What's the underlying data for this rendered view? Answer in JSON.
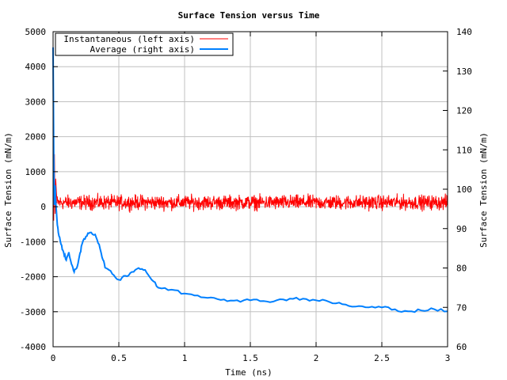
{
  "chart_data": {
    "type": "line",
    "title": "Surface Tension versus Time",
    "xlabel": "Time (ns)",
    "ylabel_left": "Surface Tension (mN/m)",
    "ylabel_right": "Surface Tension (mN/m)",
    "xlim": [
      0,
      3
    ],
    "ylim_left": [
      -4000,
      5000
    ],
    "ylim_right": [
      60,
      140
    ],
    "x_ticks": [
      0,
      0.5,
      1,
      1.5,
      2,
      2.5,
      3
    ],
    "x_tick_labels": [
      "0",
      "0.5",
      "1",
      "1.5",
      "2",
      "2.5",
      "3"
    ],
    "y_left_ticks": [
      -4000,
      -3000,
      -2000,
      -1000,
      0,
      1000,
      2000,
      3000,
      4000,
      5000
    ],
    "y_right_ticks": [
      60,
      70,
      80,
      90,
      100,
      110,
      120,
      130,
      140
    ],
    "grid": true,
    "legend_position": "top-left",
    "series": [
      {
        "name": "Instantaneous (left axis)",
        "axis": "left",
        "color": "#ff0000",
        "mean": 120,
        "amplitude": 220,
        "initial_spike": [
          [
            0.0,
            4600
          ],
          [
            0.005,
            -400
          ],
          [
            0.01,
            1500
          ],
          [
            0.015,
            -200
          ],
          [
            0.02,
            800
          ],
          [
            0.03,
            100
          ]
        ],
        "x_range": [
          0.03,
          3
        ]
      },
      {
        "name": "Average (right axis)",
        "axis": "right",
        "color": "#0080ff",
        "points": [
          [
            0.0,
            136
          ],
          [
            0.005,
            110
          ],
          [
            0.01,
            96
          ],
          [
            0.015,
            101
          ],
          [
            0.02,
            97
          ],
          [
            0.03,
            92
          ],
          [
            0.04,
            89
          ],
          [
            0.06,
            86
          ],
          [
            0.08,
            84
          ],
          [
            0.1,
            82
          ],
          [
            0.12,
            84
          ],
          [
            0.14,
            81
          ],
          [
            0.16,
            79
          ],
          [
            0.18,
            80
          ],
          [
            0.2,
            83
          ],
          [
            0.22,
            86
          ],
          [
            0.25,
            88
          ],
          [
            0.28,
            89
          ],
          [
            0.32,
            88.5
          ],
          [
            0.35,
            86
          ],
          [
            0.38,
            82
          ],
          [
            0.4,
            80
          ],
          [
            0.45,
            78.5
          ],
          [
            0.5,
            77
          ],
          [
            0.55,
            78
          ],
          [
            0.6,
            79
          ],
          [
            0.65,
            80
          ],
          [
            0.7,
            79.5
          ],
          [
            0.75,
            77
          ],
          [
            0.8,
            75
          ],
          [
            0.9,
            74.5
          ],
          [
            1.0,
            73.5
          ],
          [
            1.1,
            73
          ],
          [
            1.2,
            72.5
          ],
          [
            1.3,
            72
          ],
          [
            1.4,
            71.8
          ],
          [
            1.5,
            71.8
          ],
          [
            1.6,
            71.6
          ],
          [
            1.7,
            71.8
          ],
          [
            1.8,
            72.2
          ],
          [
            1.9,
            72.2
          ],
          [
            2.0,
            71.8
          ],
          [
            2.1,
            71.4
          ],
          [
            2.2,
            70.8
          ],
          [
            2.3,
            70.2
          ],
          [
            2.4,
            70
          ],
          [
            2.5,
            70
          ],
          [
            2.6,
            69.5
          ],
          [
            2.7,
            69
          ],
          [
            2.8,
            69.2
          ],
          [
            2.9,
            69.5
          ],
          [
            3.0,
            69
          ]
        ]
      }
    ]
  }
}
